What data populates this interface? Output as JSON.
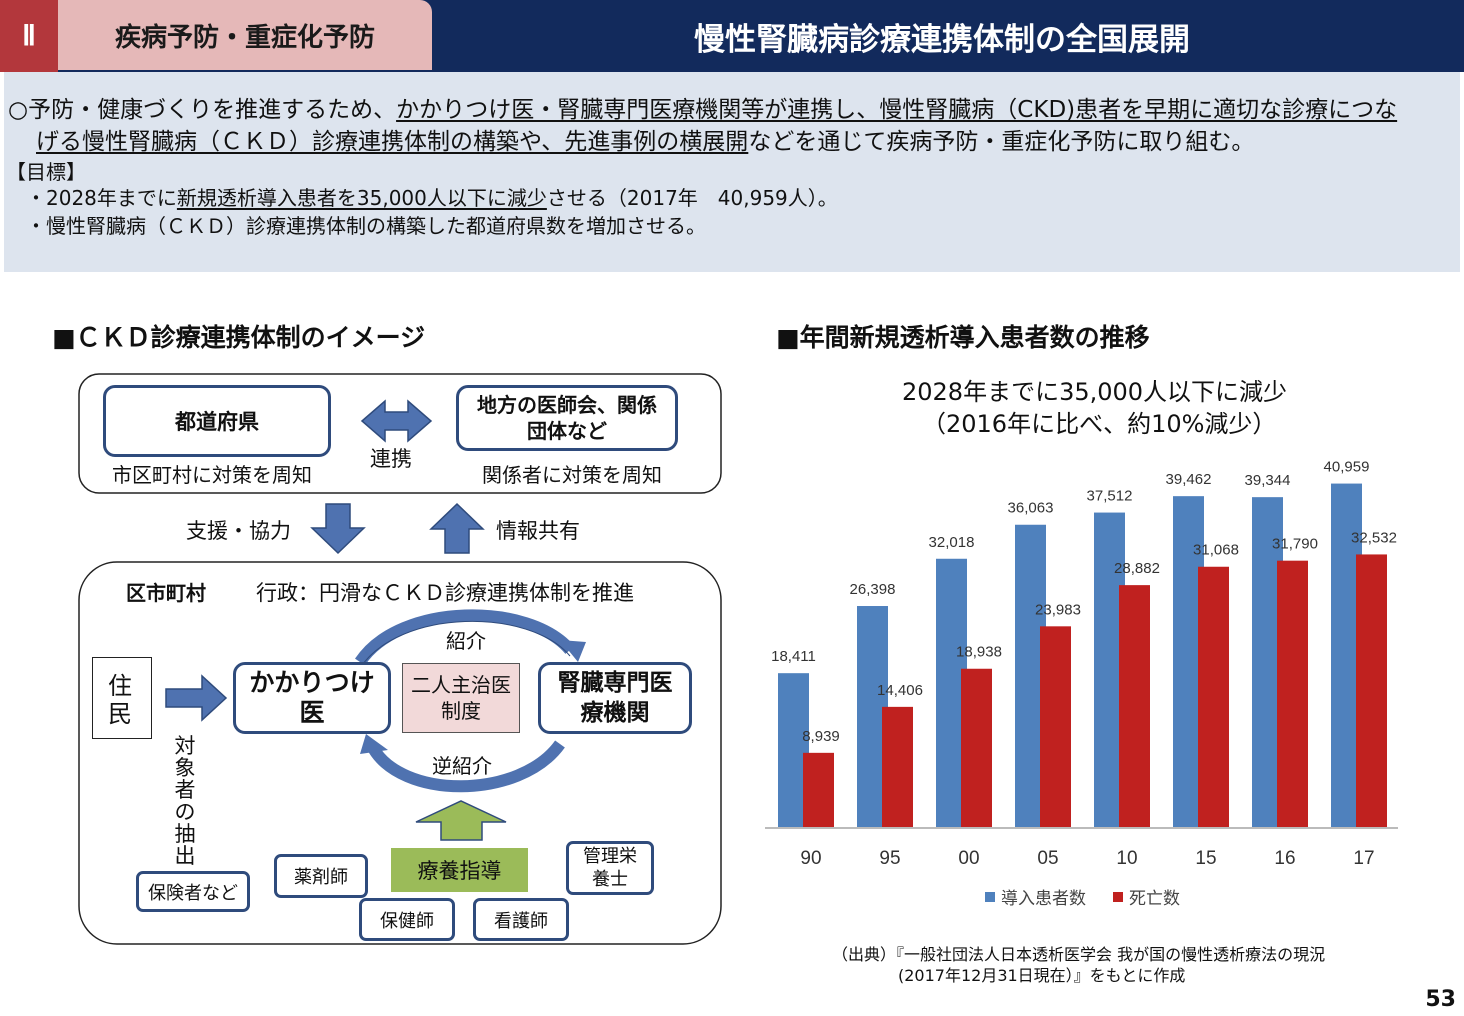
{
  "header": {
    "section_number": "Ⅱ",
    "section_label": "疾病予防・重症化予防",
    "title": "慢性腎臓病診療連携体制の全国展開"
  },
  "intro": {
    "bullet": "○",
    "line1_a": "予防・健康づくりを推進するため、",
    "line1_b": "かかりつけ医・腎臓専門医療機関等が連携し、慢性腎臓病（CKD)患者を早期に適切な診療につな",
    "line2_a": "げる慢性腎臓病（ＣＫＤ）診療連携体制の構築や、先進事例の横展開",
    "line2_b": "などを通じて疾病予防・重症化予防に取り組む。",
    "goal_heading": "【目標】",
    "goal1_a": "・2028年までに",
    "goal1_b": "新規透析導入患者を35,000人以下に減少",
    "goal1_c": "させる（2017年　40,959人）。",
    "goal2": "・慢性腎臓病（ＣＫＤ）診療連携体制の構築した都道府県数を増加させる。"
  },
  "diagram": {
    "heading": "■ＣＫＤ診療連携体制のイメージ",
    "prefecture": "都道府県",
    "prefecture_note": "市区町村に対策を周知",
    "link_label": "連携",
    "medical_assoc": "地方の医師会、関係団体など",
    "medical_assoc_note": "関係者に対策を周知",
    "support_label": "支援・協力",
    "info_label": "情報共有",
    "city_label": "区市町村",
    "city_desc": "行政：円滑なＣＫＤ診療連携体制を推進",
    "resident": "住民",
    "gp": "かかりつけ医",
    "dual": "二人主治医制度",
    "specialist": "腎臓専門医療機関",
    "referral": "紹介",
    "reverse_referral": "逆紹介",
    "extraction": "対象者の抽出",
    "insurer": "保険者など",
    "pharmacist": "薬剤師",
    "guidance": "療養指導",
    "dietitian": "管理栄養士",
    "public_health_nurse": "保健師",
    "nurse": "看護師"
  },
  "chart_section": {
    "heading": "■年間新規透析導入患者数の推移",
    "subtitle1": "2028年までに35,000人以下に減少",
    "subtitle2": "（2016年に比べ、約10%減少）",
    "source1": "（出典）『一般社団法人日本透析医学会 我が国の慢性透析療法の現況",
    "source2": "(2017年12月31日現在）』をもとに作成"
  },
  "chart_data": {
    "type": "bar",
    "categories": [
      "90",
      "95",
      "00",
      "05",
      "10",
      "15",
      "16",
      "17"
    ],
    "series": [
      {
        "name": "導入患者数",
        "values": [
          18411,
          26398,
          32018,
          36063,
          37512,
          39462,
          39344,
          40959
        ],
        "color": "#4f81bd"
      },
      {
        "name": "死亡数",
        "values": [
          8939,
          14406,
          18938,
          23983,
          28882,
          31068,
          31790,
          32532
        ],
        "color": "#c0211f"
      }
    ],
    "value_labels": {
      "series1": [
        "18,411",
        "26,398",
        "32,018",
        "36,063",
        "37,512",
        "39,462",
        "39,344",
        "40,959"
      ],
      "series2": [
        "8,939",
        "14,406",
        "18,938",
        "23,983",
        "28,882",
        "31,068",
        "31,790",
        "32,532"
      ]
    },
    "legend_position": "bottom",
    "grid": false
  },
  "footer": {
    "page_number": "53"
  }
}
